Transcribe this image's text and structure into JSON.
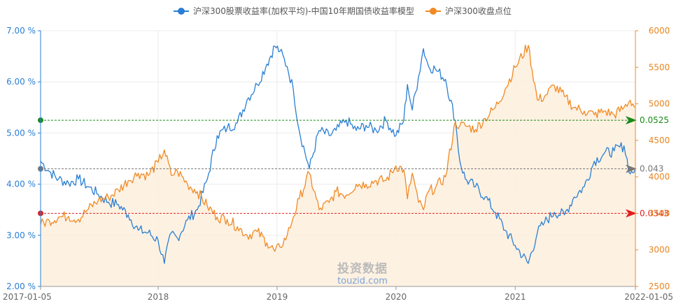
{
  "chart_data": {
    "type": "line",
    "title": "",
    "legend": {
      "placement": "top-center",
      "entries": [
        {
          "name": "沪深300股票收益率(加权平均)-中国10年期国债收益率模型",
          "color": "#2a7fd4"
        },
        {
          "name": "沪深300收盘点位",
          "color": "#f08a24"
        }
      ]
    },
    "x_axis": {
      "type": "date",
      "range": [
        "2017-01-05",
        "2022-01-05"
      ],
      "tick_labels": [
        "2017-01-05",
        "2018",
        "2019",
        "2020",
        "2021",
        "2022-01-05"
      ],
      "tick_dates": [
        "2017-01-05",
        "2018-01-01",
        "2019-01-01",
        "2020-01-01",
        "2021-01-01",
        "2022-01-05"
      ]
    },
    "y_left": {
      "range": [
        0.02,
        0.07
      ],
      "tick_labels": [
        "2.00 %",
        "3.00 %",
        "4.00 %",
        "5.00 %",
        "6.00 %",
        "7.00 %"
      ],
      "tick_values": [
        0.02,
        0.03,
        0.04,
        0.05,
        0.06,
        0.07
      ],
      "color": "#2a7fd4"
    },
    "y_right": {
      "range": [
        2500,
        6000
      ],
      "tick_labels": [
        "2500",
        "3000",
        "3500",
        "4000",
        "4500",
        "5000",
        "5500",
        "6000"
      ],
      "tick_values": [
        2500,
        3000,
        3500,
        4000,
        4500,
        5000,
        5500,
        6000
      ],
      "color": "#f08a24"
    },
    "grid": true,
    "series": [
      {
        "name": "沪深300股票收益率(加权平均)-中国10年期国债收益率模型",
        "axis": "left",
        "color": "#2a7fd4",
        "points": [
          [
            "2017-01-05",
            0.0445
          ],
          [
            "2017-02-01",
            0.0425
          ],
          [
            "2017-03-01",
            0.041
          ],
          [
            "2017-04-01",
            0.0402
          ],
          [
            "2017-05-01",
            0.041
          ],
          [
            "2017-06-01",
            0.0395
          ],
          [
            "2017-07-01",
            0.038
          ],
          [
            "2017-08-01",
            0.0365
          ],
          [
            "2017-09-01",
            0.036
          ],
          [
            "2017-10-01",
            0.034
          ],
          [
            "2017-11-01",
            0.031
          ],
          [
            "2017-12-01",
            0.0305
          ],
          [
            "2018-01-01",
            0.029
          ],
          [
            "2018-01-20",
            0.0245
          ],
          [
            "2018-02-10",
            0.0305
          ],
          [
            "2018-03-01",
            0.0295
          ],
          [
            "2018-04-01",
            0.033
          ],
          [
            "2018-05-01",
            0.035
          ],
          [
            "2018-06-01",
            0.041
          ],
          [
            "2018-07-01",
            0.0495
          ],
          [
            "2018-08-01",
            0.051
          ],
          [
            "2018-09-01",
            0.052
          ],
          [
            "2018-10-01",
            0.0565
          ],
          [
            "2018-11-01",
            0.0595
          ],
          [
            "2018-12-01",
            0.0635
          ],
          [
            "2018-12-25",
            0.067
          ],
          [
            "2019-01-10",
            0.066
          ],
          [
            "2019-02-01",
            0.063
          ],
          [
            "2019-02-20",
            0.0585
          ],
          [
            "2019-03-10",
            0.0505
          ],
          [
            "2019-04-10",
            0.043
          ],
          [
            "2019-05-10",
            0.0505
          ],
          [
            "2019-06-10",
            0.0495
          ],
          [
            "2019-07-01",
            0.0505
          ],
          [
            "2019-08-01",
            0.0525
          ],
          [
            "2019-09-01",
            0.0505
          ],
          [
            "2019-10-01",
            0.0515
          ],
          [
            "2019-11-01",
            0.0505
          ],
          [
            "2019-12-01",
            0.0525
          ],
          [
            "2020-01-01",
            0.0495
          ],
          [
            "2020-01-25",
            0.0525
          ],
          [
            "2020-02-05",
            0.0595
          ],
          [
            "2020-02-20",
            0.0545
          ],
          [
            "2020-03-10",
            0.061
          ],
          [
            "2020-03-25",
            0.0665
          ],
          [
            "2020-04-10",
            0.063
          ],
          [
            "2020-05-01",
            0.0625
          ],
          [
            "2020-06-01",
            0.0605
          ],
          [
            "2020-07-01",
            0.0525
          ],
          [
            "2020-07-15",
            0.0445
          ],
          [
            "2020-08-01",
            0.041
          ],
          [
            "2020-09-01",
            0.0395
          ],
          [
            "2020-10-01",
            0.0375
          ],
          [
            "2020-11-01",
            0.0345
          ],
          [
            "2020-12-01",
            0.031
          ],
          [
            "2021-01-01",
            0.028
          ],
          [
            "2021-02-10",
            0.0245
          ],
          [
            "2021-03-10",
            0.0305
          ],
          [
            "2021-04-01",
            0.0325
          ],
          [
            "2021-05-01",
            0.0345
          ],
          [
            "2021-06-01",
            0.034
          ],
          [
            "2021-07-01",
            0.0375
          ],
          [
            "2021-08-01",
            0.0395
          ],
          [
            "2021-09-01",
            0.0445
          ],
          [
            "2021-10-01",
            0.046
          ],
          [
            "2021-11-01",
            0.0465
          ],
          [
            "2021-12-01",
            0.0475
          ],
          [
            "2021-12-20",
            0.042
          ],
          [
            "2022-01-05",
            0.043
          ]
        ]
      },
      {
        "name": "沪深300收盘点位",
        "axis": "right",
        "color": "#f08a24",
        "fill": "#fdeedd",
        "points": [
          [
            "2017-01-05",
            3350
          ],
          [
            "2017-02-01",
            3400
          ],
          [
            "2017-03-01",
            3450
          ],
          [
            "2017-04-01",
            3460
          ],
          [
            "2017-05-01",
            3420
          ],
          [
            "2017-06-01",
            3560
          ],
          [
            "2017-07-01",
            3680
          ],
          [
            "2017-08-01",
            3720
          ],
          [
            "2017-09-01",
            3820
          ],
          [
            "2017-10-01",
            3950
          ],
          [
            "2017-11-01",
            4050
          ],
          [
            "2017-12-01",
            4020
          ],
          [
            "2018-01-01",
            4200
          ],
          [
            "2018-01-20",
            4370
          ],
          [
            "2018-02-10",
            4020
          ],
          [
            "2018-03-01",
            4080
          ],
          [
            "2018-04-01",
            3900
          ],
          [
            "2018-05-01",
            3800
          ],
          [
            "2018-06-01",
            3600
          ],
          [
            "2018-07-01",
            3450
          ],
          [
            "2018-08-01",
            3420
          ],
          [
            "2018-09-01",
            3320
          ],
          [
            "2018-10-01",
            3200
          ],
          [
            "2018-11-01",
            3250
          ],
          [
            "2018-12-01",
            3100
          ],
          [
            "2018-12-25",
            2980
          ],
          [
            "2019-01-10",
            3040
          ],
          [
            "2019-02-01",
            3200
          ],
          [
            "2019-02-20",
            3450
          ],
          [
            "2019-03-10",
            3700
          ],
          [
            "2019-04-10",
            4050
          ],
          [
            "2019-05-10",
            3550
          ],
          [
            "2019-06-10",
            3650
          ],
          [
            "2019-07-01",
            3800
          ],
          [
            "2019-08-01",
            3750
          ],
          [
            "2019-09-01",
            3900
          ],
          [
            "2019-10-01",
            3900
          ],
          [
            "2019-11-01",
            3950
          ],
          [
            "2019-12-01",
            3950
          ],
          [
            "2020-01-01",
            4150
          ],
          [
            "2020-01-25",
            4100
          ],
          [
            "2020-02-05",
            3700
          ],
          [
            "2020-02-20",
            4050
          ],
          [
            "2020-03-10",
            3650
          ],
          [
            "2020-03-25",
            3550
          ],
          [
            "2020-04-10",
            3800
          ],
          [
            "2020-05-01",
            3850
          ],
          [
            "2020-06-01",
            4000
          ],
          [
            "2020-07-01",
            4750
          ],
          [
            "2020-07-15",
            4700
          ],
          [
            "2020-08-01",
            4700
          ],
          [
            "2020-09-01",
            4650
          ],
          [
            "2020-10-01",
            4800
          ],
          [
            "2020-11-01",
            4950
          ],
          [
            "2020-12-01",
            5200
          ],
          [
            "2021-01-01",
            5500
          ],
          [
            "2021-02-10",
            5800
          ],
          [
            "2021-03-10",
            5050
          ],
          [
            "2021-04-01",
            5100
          ],
          [
            "2021-05-01",
            5250
          ],
          [
            "2021-06-01",
            5100
          ],
          [
            "2021-07-01",
            4950
          ],
          [
            "2021-08-01",
            4900
          ],
          [
            "2021-09-01",
            4850
          ],
          [
            "2021-10-01",
            4900
          ],
          [
            "2021-11-01",
            4850
          ],
          [
            "2021-12-01",
            4950
          ],
          [
            "2021-12-20",
            5050
          ],
          [
            "2022-01-05",
            4950
          ]
        ]
      }
    ],
    "reference_lines": [
      {
        "axis": "left",
        "value": 0.0525,
        "label": "0.0525",
        "color": "#1a8a1a"
      },
      {
        "axis": "left",
        "value": 0.043,
        "label": "0.043",
        "color": "#777777"
      },
      {
        "axis": "left",
        "value": 0.0343,
        "label": "0.0343",
        "color": "#e02020"
      }
    ],
    "watermark": {
      "text_cn": "投资数据",
      "text_en": "touzid.com"
    }
  }
}
